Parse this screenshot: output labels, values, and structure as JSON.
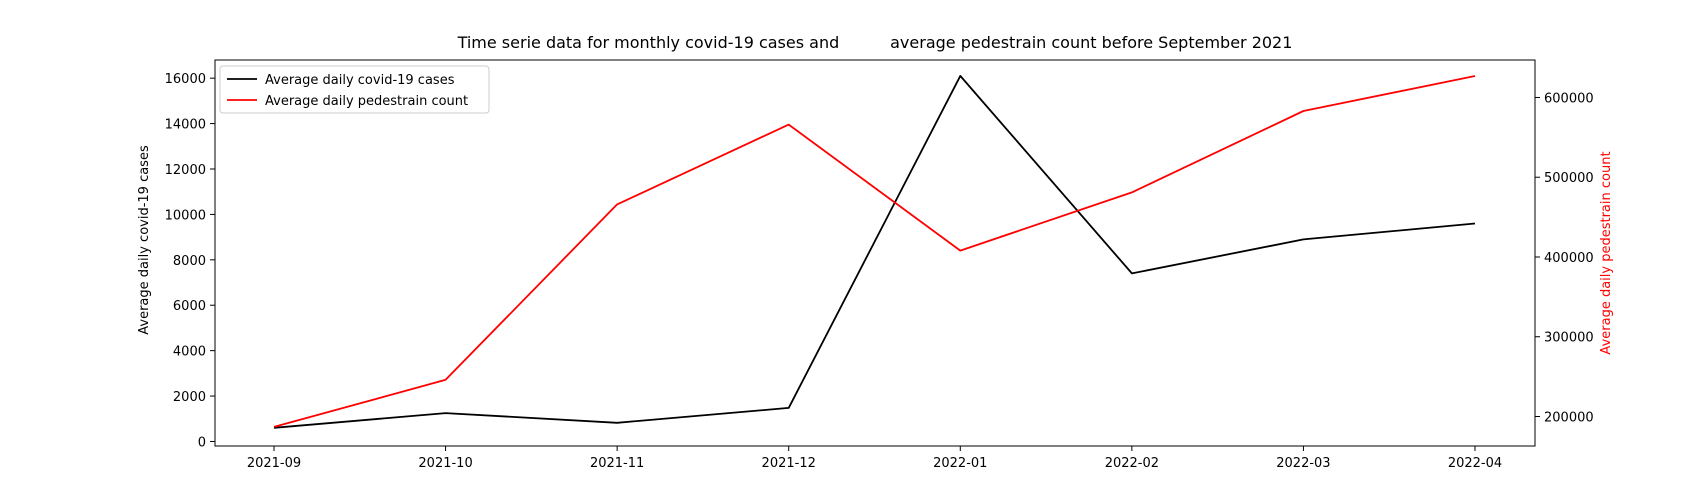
{
  "chart_data": {
    "type": "line",
    "title": "Time serie data for monthly covid-19 cases and          average pedestrain count before September 2021",
    "x": [
      "2021-09",
      "2021-10",
      "2021-11",
      "2021-12",
      "2022-01",
      "2022-02",
      "2022-03",
      "2022-04"
    ],
    "ylabel_left": "Average daily covid-19 cases",
    "ylabel_right": "Average daily pedestrain count",
    "ylim_left": [
      -200,
      16800
    ],
    "yticks_left": [
      0,
      2000,
      4000,
      6000,
      8000,
      10000,
      12000,
      14000,
      16000
    ],
    "ylim_right": [
      163000,
      647000
    ],
    "yticks_right": [
      200000,
      300000,
      400000,
      500000,
      600000
    ],
    "series": [
      {
        "name": "Average daily covid-19 cases",
        "axis": "left",
        "color": "#000000",
        "values": [
          600,
          1250,
          820,
          1480,
          16100,
          7400,
          8900,
          9600
        ]
      },
      {
        "name": "Average daily pedestrain count",
        "axis": "right",
        "color": "#ff0000",
        "values": [
          187000,
          246000,
          466000,
          566000,
          408000,
          481000,
          583000,
          627000
        ]
      }
    ],
    "legend_position": "upper-left",
    "right_axis_label_color": "#ff0000"
  }
}
